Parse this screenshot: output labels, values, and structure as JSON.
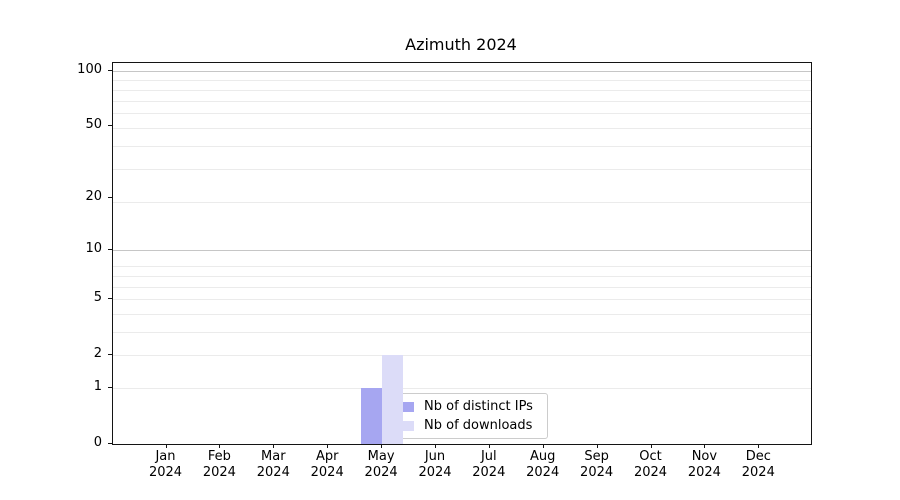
{
  "chart_data": {
    "type": "bar",
    "title": "Azimuth 2024",
    "categories": [
      "Jan",
      "Feb",
      "Mar",
      "Apr",
      "May",
      "Jun",
      "Jul",
      "Aug",
      "Sep",
      "Oct",
      "Nov",
      "Dec"
    ],
    "year_label": "2024",
    "series": [
      {
        "name": "Nb of distinct IPs",
        "color": "#a6a6f1",
        "values": [
          0,
          0,
          0,
          0,
          1,
          0,
          0,
          0,
          0,
          0,
          0,
          0
        ]
      },
      {
        "name": "Nb of downloads",
        "color": "#dcdcf8",
        "values": [
          0,
          0,
          0,
          0,
          2,
          0,
          0,
          0,
          0,
          0,
          0,
          0
        ]
      }
    ],
    "xlabel": "",
    "ylabel": "",
    "y_ticks": [
      0,
      1,
      2,
      5,
      10,
      20,
      50,
      100
    ],
    "y_scale": "log1p",
    "ylim": [
      0,
      110
    ],
    "xlim_months": [
      "Dec 2023",
      "Dec 2024"
    ],
    "grid": "horizontal, minor and major, on",
    "legend_position": "inside lower-center",
    "colors": {
      "axis": "#141414",
      "grid_minor": "#ebebeb",
      "grid_major": "#c6c6c6",
      "background": "#ffffff"
    }
  }
}
